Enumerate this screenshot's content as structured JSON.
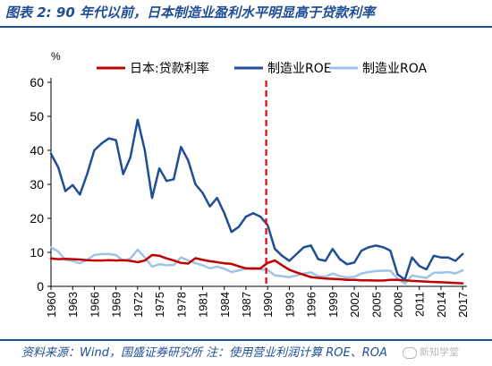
{
  "figure": {
    "title": "图表 2:  90 年代以前，日本制造业盈利水平明显高于贷款利率",
    "footer": "资料来源：Wind，国盛证券研究所  注：使用营业利润计算 ROE、ROA",
    "watermark": "新知学堂"
  },
  "chart_data": {
    "type": "line",
    "ylabel": "%",
    "ylim": [
      0,
      60
    ],
    "yticks": [
      0,
      10,
      20,
      30,
      40,
      50,
      60
    ],
    "xlim": [
      1960,
      2017.6
    ],
    "xticks": [
      1960,
      1963,
      1966,
      1969,
      1972,
      1975,
      1978,
      1981,
      1984,
      1987,
      1990,
      1993,
      1996,
      1999,
      2002,
      2005,
      2008,
      2011,
      2014,
      2017
    ],
    "grid": false,
    "legend_position": "top",
    "annotations": [
      {
        "type": "vertical-dashed-line",
        "x": 1989.8,
        "color": "#e8000b"
      }
    ],
    "series": [
      {
        "name": "日本:贷款利率",
        "color": "#c00000",
        "x": [
          1960,
          1961,
          1962,
          1963,
          1964,
          1965,
          1966,
          1967,
          1968,
          1969,
          1970,
          1971,
          1972,
          1973,
          1974,
          1975,
          1976,
          1977,
          1978,
          1979,
          1980,
          1981,
          1982,
          1983,
          1984,
          1985,
          1986,
          1987,
          1988,
          1989,
          1990,
          1991,
          1992,
          1993,
          1994,
          1995,
          1996,
          1997,
          1998,
          1999,
          2000,
          2001,
          2002,
          2003,
          2004,
          2005,
          2006,
          2007,
          2008,
          2009,
          2010,
          2011,
          2012,
          2013,
          2014,
          2015,
          2016,
          2017
        ],
        "y": [
          8.2,
          8.0,
          8.1,
          8.0,
          7.9,
          7.7,
          7.6,
          7.6,
          7.7,
          7.6,
          7.7,
          7.5,
          7.1,
          7.6,
          9.2,
          9.0,
          8.2,
          7.6,
          6.9,
          6.7,
          8.3,
          7.8,
          7.4,
          7.1,
          6.8,
          6.6,
          5.9,
          5.3,
          5.2,
          5.3,
          6.9,
          7.6,
          6.2,
          4.9,
          4.1,
          3.4,
          2.7,
          2.5,
          2.3,
          2.2,
          2.1,
          1.9,
          1.9,
          1.8,
          1.8,
          1.7,
          1.7,
          1.9,
          1.9,
          1.8,
          1.6,
          1.5,
          1.4,
          1.3,
          1.2,
          1.1,
          1.0,
          0.9
        ]
      },
      {
        "name": "制造业ROE",
        "color": "#1f4e96",
        "x": [
          1960,
          1961,
          1962,
          1963,
          1964,
          1965,
          1966,
          1967,
          1968,
          1969,
          1970,
          1971,
          1972,
          1973,
          1974,
          1975,
          1976,
          1977,
          1978,
          1979,
          1980,
          1981,
          1982,
          1983,
          1984,
          1985,
          1986,
          1987,
          1988,
          1989,
          1990,
          1991,
          1992,
          1993,
          1994,
          1995,
          1996,
          1997,
          1998,
          1999,
          2000,
          2001,
          2002,
          2003,
          2004,
          2005,
          2006,
          2007,
          2008,
          2009,
          2010,
          2011,
          2012,
          2013,
          2014,
          2015,
          2016,
          2017
        ],
        "y": [
          39.0,
          35.0,
          28.0,
          29.8,
          27.0,
          33.0,
          40.0,
          42.0,
          43.5,
          43.0,
          33.0,
          38.0,
          49.0,
          40.0,
          26.0,
          34.7,
          31.0,
          31.5,
          41.0,
          37.0,
          30.0,
          27.5,
          23.5,
          26.0,
          21.5,
          16.0,
          17.5,
          20.5,
          21.5,
          20.5,
          18.0,
          11.0,
          9.0,
          7.5,
          9.5,
          11.5,
          12.0,
          8.0,
          7.5,
          11.0,
          8.0,
          6.5,
          7.0,
          10.5,
          11.5,
          12.0,
          11.5,
          10.5,
          3.5,
          2.0,
          8.5,
          6.0,
          5.0,
          9.0,
          8.5,
          8.5,
          7.5,
          9.5
        ]
      },
      {
        "name": "制造业ROA",
        "color": "#9dc3e6",
        "x": [
          1960,
          1961,
          1962,
          1963,
          1964,
          1965,
          1966,
          1967,
          1968,
          1969,
          1970,
          1971,
          1972,
          1973,
          1974,
          1975,
          1976,
          1977,
          1978,
          1979,
          1980,
          1981,
          1982,
          1983,
          1984,
          1985,
          1986,
          1987,
          1988,
          1989,
          1990,
          1991,
          1992,
          1993,
          1994,
          1995,
          1996,
          1997,
          1998,
          1999,
          2000,
          2001,
          2002,
          2003,
          2004,
          2005,
          2006,
          2007,
          2008,
          2009,
          2010,
          2011,
          2012,
          2013,
          2014,
          2015,
          2016,
          2017
        ],
        "y": [
          11.5,
          10.2,
          7.8,
          7.5,
          6.8,
          7.8,
          9.2,
          9.5,
          9.5,
          9.2,
          7.5,
          8.2,
          10.8,
          8.5,
          5.8,
          6.5,
          6.2,
          6.3,
          8.5,
          7.6,
          6.8,
          6.2,
          5.3,
          5.8,
          5.2,
          4.2,
          4.7,
          5.2,
          5.5,
          5.0,
          4.8,
          3.2,
          3.0,
          2.7,
          3.2,
          3.8,
          4.1,
          3.0,
          2.8,
          3.8,
          3.0,
          2.6,
          2.8,
          3.8,
          4.2,
          4.5,
          4.6,
          4.6,
          2.2,
          0.8,
          3.2,
          2.8,
          2.5,
          4.0,
          4.0,
          4.2,
          3.8,
          4.7
        ]
      }
    ]
  }
}
